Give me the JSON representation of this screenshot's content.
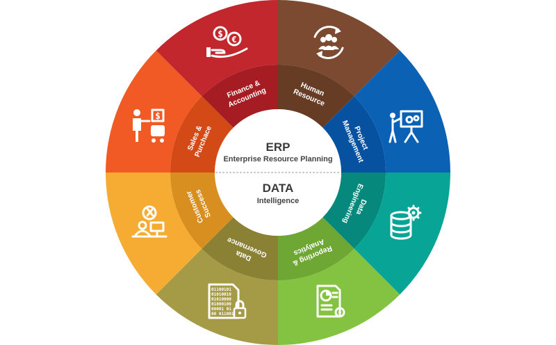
{
  "center": {
    "top_title": "ERP",
    "top_subtitle": "Enterprise Resource Planning",
    "bottom_title": "DATA",
    "bottom_subtitle": "Intelligence"
  },
  "segments": [
    {
      "id": "human-resource",
      "label_lines": [
        "Human",
        "Resource"
      ],
      "color": "#7b4a30",
      "inner_color": "#663c25",
      "icon": "people-cycle-icon"
    },
    {
      "id": "project-management",
      "label_lines": [
        "Project",
        "Management"
      ],
      "color": "#0b62b5",
      "inner_color": "#0752a0",
      "icon": "presentation-board-icon"
    },
    {
      "id": "data-engineering",
      "label_lines": [
        "Data",
        "Engineering"
      ],
      "color": "#08a596",
      "inner_color": "#07887c",
      "icon": "database-gear-icon"
    },
    {
      "id": "reporting-analytics",
      "label_lines": [
        "Reporting &",
        "Analytics"
      ],
      "color": "#83c341",
      "inner_color": "#6ea734",
      "icon": "report-chart-icon"
    },
    {
      "id": "data-governance",
      "label_lines": [
        "Data",
        "Governance"
      ],
      "color": "#a59a45",
      "inner_color": "#8b8134",
      "icon": "binary-file-lock-icon"
    },
    {
      "id": "customer-success",
      "label_lines": [
        "Customer",
        "Success"
      ],
      "color": "#f6ac33",
      "inner_color": "#d98f20",
      "icon": "support-desk-icon"
    },
    {
      "id": "sales-purchase",
      "label_lines": [
        "Sales &",
        "Purchace"
      ],
      "color": "#f15a24",
      "inner_color": "#d44a17",
      "icon": "sales-cart-icon"
    },
    {
      "id": "finance-accounting",
      "label_lines": [
        "Finance &",
        "Accounting"
      ],
      "color": "#c1272d",
      "inner_color": "#a51d22",
      "icon": "money-hand-icon"
    }
  ],
  "icons": {
    "finance_symbols": [
      "$",
      "€"
    ],
    "sales_symbol": "$",
    "binary_lines": [
      "01100101",
      "01010010",
      "01010000",
      "01000100",
      "00001 01",
      "00 011001"
    ]
  }
}
